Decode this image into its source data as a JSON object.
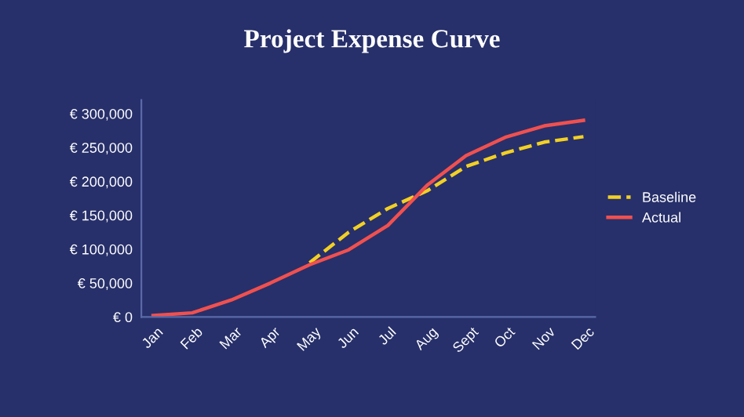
{
  "chart_data": {
    "type": "line",
    "title": "Project Expense Curve",
    "categories": [
      "Jan",
      "Feb",
      "Mar",
      "Apr",
      "May",
      "Jun",
      "Jul",
      "Aug",
      "Sept",
      "Oct",
      "Nov",
      "Dec"
    ],
    "series": [
      {
        "name": "Baseline",
        "color": "#f2d024",
        "line_style": "dashed",
        "values": [
          null,
          null,
          null,
          null,
          80000,
          125000,
          160000,
          186000,
          222000,
          242000,
          258000,
          266000
        ]
      },
      {
        "name": "Actual",
        "color": "#f0504f",
        "line_style": "solid",
        "values": [
          2000,
          6000,
          25000,
          50000,
          77000,
          99000,
          135000,
          194000,
          238000,
          265000,
          282000,
          290000
        ]
      }
    ],
    "ylim": [
      0,
      320000
    ],
    "yticks": [
      {
        "value": 0,
        "label": "€ 0"
      },
      {
        "value": 50000,
        "label": "€ 50,000"
      },
      {
        "value": 100000,
        "label": "€ 100,000"
      },
      {
        "value": 150000,
        "label": "€ 150,000"
      },
      {
        "value": 200000,
        "label": "€ 200,000"
      },
      {
        "value": 250000,
        "label": "€ 250,000"
      },
      {
        "value": 300000,
        "label": "€ 300,000"
      }
    ],
    "grid": false,
    "legend": "right",
    "marker": "none"
  }
}
